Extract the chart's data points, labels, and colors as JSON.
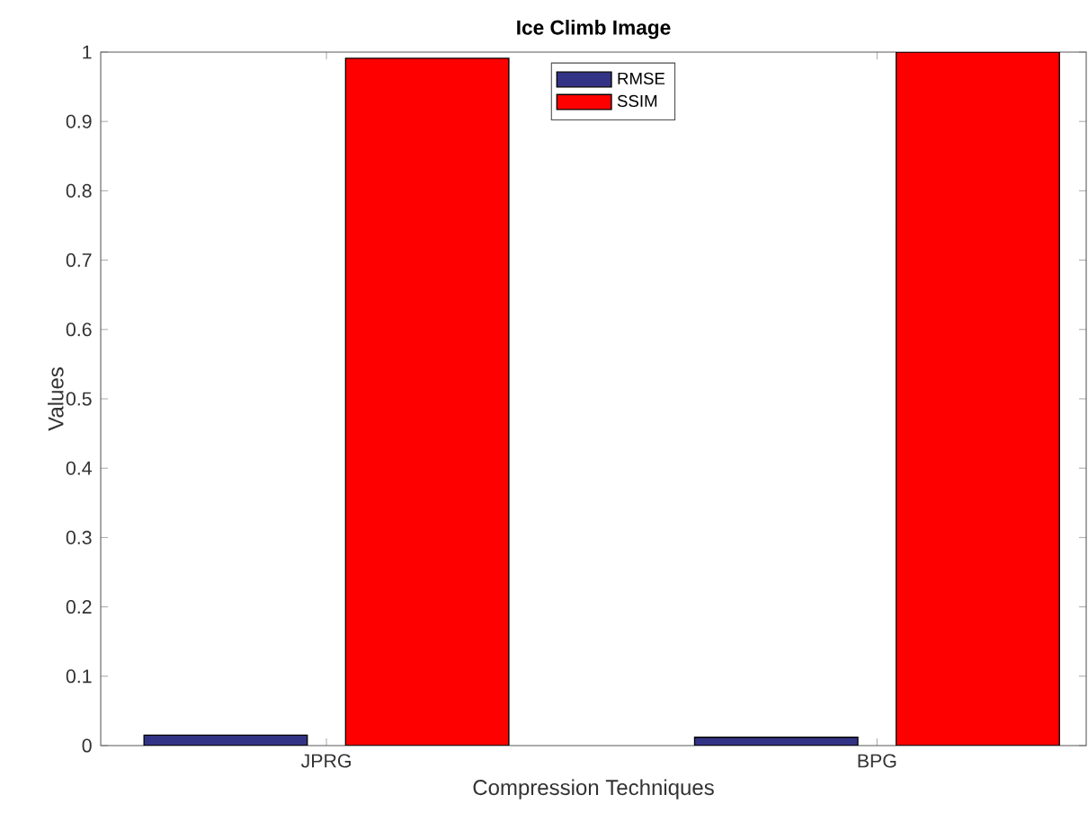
{
  "chart_data": {
    "type": "bar",
    "title": "Ice Climb Image",
    "xlabel": "Compression Techniques",
    "ylabel": "Values",
    "categories": [
      "JPRG",
      "BPG"
    ],
    "series": [
      {
        "name": "RMSE",
        "color": "#333385",
        "values": [
          0.015,
          0.012
        ]
      },
      {
        "name": "SSIM",
        "color": "#ff0000",
        "values": [
          0.991,
          1.0
        ]
      }
    ],
    "ylim": [
      0,
      1
    ],
    "yticks": [
      0,
      0.1,
      0.2,
      0.3,
      0.4,
      0.5,
      0.6,
      0.7,
      0.8,
      0.9,
      1
    ],
    "grid": false,
    "legend": "top"
  }
}
